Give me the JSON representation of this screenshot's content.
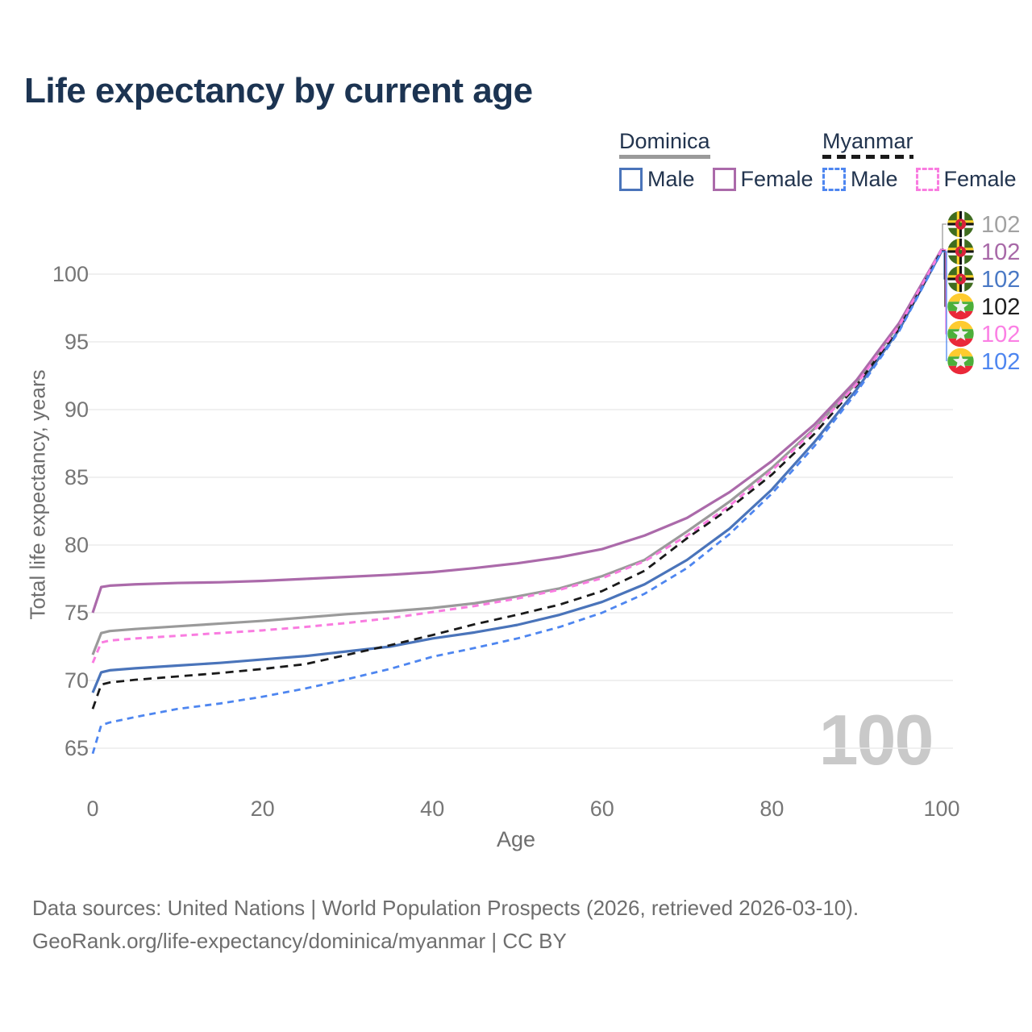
{
  "title": "Life expectancy by current age",
  "legend": {
    "groups": [
      {
        "id": "dominica",
        "label": "Dominica",
        "line_style": "solid",
        "color": "#9a9a9a",
        "items": [
          {
            "id": "dominica-male",
            "label": "Male",
            "color": "#4a74ba",
            "dashed": false
          },
          {
            "id": "dominica-female",
            "label": "Female",
            "color": "#ab6aaa",
            "dashed": false
          }
        ]
      },
      {
        "id": "myanmar",
        "label": "Myanmar",
        "line_style": "dashed",
        "color": "#1a1a1a",
        "items": [
          {
            "id": "myanmar-male",
            "label": "Male",
            "color": "#4e86f0",
            "dashed": true
          },
          {
            "id": "myanmar-female",
            "label": "Female",
            "color": "#f97ce0",
            "dashed": true
          }
        ]
      }
    ]
  },
  "chart_data": {
    "type": "line",
    "title": "Life expectancy by current age",
    "xlabel": "Age",
    "ylabel": "Total life expectancy, years",
    "xlim": [
      0,
      100
    ],
    "ylim": [
      63,
      103
    ],
    "x_ticks": [
      0,
      20,
      40,
      60,
      80,
      100
    ],
    "y_ticks": [
      65,
      70,
      75,
      80,
      85,
      90,
      95,
      100
    ],
    "grid": "horizontal-only",
    "legend_position": "top-right",
    "watermark": "100",
    "x": [
      0,
      1,
      2,
      5,
      10,
      15,
      20,
      25,
      30,
      35,
      40,
      45,
      50,
      55,
      60,
      65,
      70,
      75,
      80,
      85,
      90,
      95,
      100
    ],
    "series": [
      {
        "id": "dominica-all",
        "name": "Dominica",
        "flag": "dominica",
        "color": "#9a9a9a",
        "dash": null,
        "width": 3.2,
        "label_color": "#a2a2a2",
        "end_label": "102",
        "values": [
          71.9,
          73.5,
          73.65,
          73.8,
          74.0,
          74.2,
          74.4,
          74.65,
          74.9,
          75.1,
          75.35,
          75.7,
          76.2,
          76.8,
          77.7,
          78.9,
          81.0,
          83.2,
          85.7,
          88.6,
          92.0,
          96.3,
          101.8
        ]
      },
      {
        "id": "dominica-female",
        "name": "Dominica Female",
        "flag": "dominica",
        "color": "#ab6aaa",
        "dash": null,
        "width": 3.2,
        "label_color": "#a869a8",
        "end_label": "102",
        "values": [
          75.0,
          76.9,
          77.0,
          77.1,
          77.2,
          77.25,
          77.35,
          77.5,
          77.65,
          77.8,
          78.0,
          78.3,
          78.65,
          79.1,
          79.7,
          80.7,
          82.0,
          83.9,
          86.2,
          88.9,
          92.2,
          96.4,
          101.85
        ]
      },
      {
        "id": "dominica-male",
        "name": "Dominica Male",
        "flag": "dominica",
        "color": "#4a74ba",
        "dash": null,
        "width": 3.2,
        "label_color": "#4a79c5",
        "end_label": "102",
        "values": [
          69.1,
          70.6,
          70.75,
          70.9,
          71.1,
          71.3,
          71.55,
          71.8,
          72.15,
          72.5,
          73.1,
          73.55,
          74.1,
          74.85,
          75.8,
          77.1,
          78.9,
          81.2,
          84.1,
          87.6,
          91.5,
          95.9,
          101.7
        ]
      },
      {
        "id": "myanmar-all",
        "name": "Myanmar",
        "flag": "myanmar",
        "color": "#1a1a1a",
        "dash": "10 7",
        "width": 2.8,
        "label_color": "#1f1f1f",
        "end_label": "102",
        "values": [
          67.9,
          69.7,
          69.85,
          70.05,
          70.3,
          70.55,
          70.85,
          71.2,
          71.9,
          72.6,
          73.35,
          74.15,
          74.85,
          75.6,
          76.6,
          78.1,
          80.5,
          82.7,
          85.2,
          88.2,
          91.8,
          96.0,
          101.75
        ]
      },
      {
        "id": "myanmar-female",
        "name": "Myanmar Female",
        "flag": "myanmar",
        "color": "#f97ce0",
        "dash": "8 6",
        "width": 3.0,
        "label_color": "#fb80e4",
        "end_label": "102",
        "values": [
          71.3,
          72.8,
          72.95,
          73.1,
          73.3,
          73.5,
          73.7,
          73.95,
          74.25,
          74.6,
          75.05,
          75.5,
          76.05,
          76.7,
          77.55,
          78.8,
          80.7,
          82.9,
          85.5,
          88.5,
          91.9,
          96.2,
          101.8
        ]
      },
      {
        "id": "myanmar-male",
        "name": "Myanmar Male",
        "flag": "myanmar",
        "color": "#4e86f0",
        "dash": "8 6",
        "width": 2.8,
        "label_color": "#4e86f0",
        "end_label": "102",
        "values": [
          64.6,
          66.7,
          66.9,
          67.3,
          67.9,
          68.3,
          68.8,
          69.4,
          70.1,
          70.85,
          71.75,
          72.4,
          73.1,
          73.95,
          75.0,
          76.4,
          78.3,
          80.8,
          83.8,
          87.3,
          91.3,
          95.8,
          101.65
        ]
      }
    ]
  },
  "footer": {
    "line1": "Data sources: United Nations | World Population Prospects (2026, retrieved 2026-03-10).",
    "line2": "GeoRank.org/life-expectancy/dominica/myanmar | CC BY"
  }
}
